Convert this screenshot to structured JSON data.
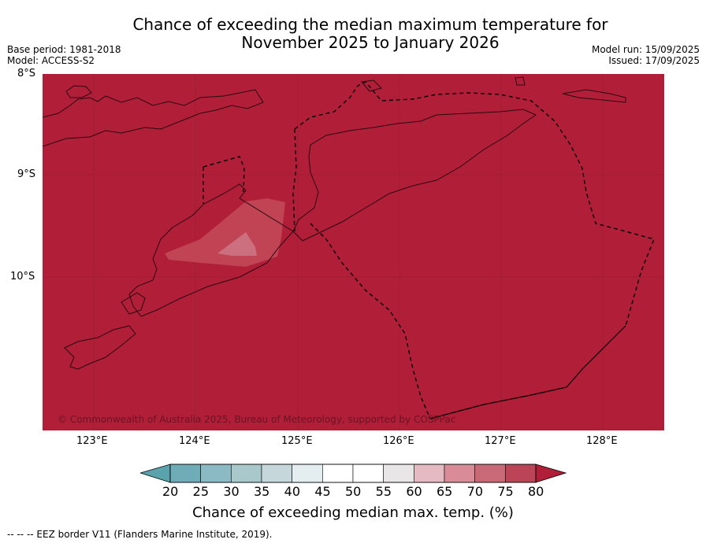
{
  "title": {
    "line1": "Chance of exceeding the median maximum temperature for",
    "line2": "November 2025 to January 2026"
  },
  "meta_left": {
    "base_period": "Base period: 1981-2018",
    "model": "Model: ACCESS-S2"
  },
  "meta_right": {
    "model_run": "Model run: 15/09/2025",
    "issued": "Issued: 17/09/2025"
  },
  "latitude_labels": [
    "8°S",
    "9°S",
    "10°S"
  ],
  "longitude_labels": [
    "123°E",
    "124°E",
    "125°E",
    "126°E",
    "127°E",
    "128°E"
  ],
  "map": {
    "background_color": "#b01e38",
    "copyright": "© Commonwealth of Australia 2025, Bureau of Meteorology, supported by COSPPac"
  },
  "colorbar": {
    "ticks": [
      "20",
      "25",
      "30",
      "35",
      "40",
      "45",
      "50",
      "55",
      "60",
      "65",
      "70",
      "75",
      "80"
    ],
    "low_arrow_color": "#5aa3ad",
    "high_arrow_color": "#b01e38",
    "colors": [
      "#6eacb8",
      "#8cbac4",
      "#a8c8cc",
      "#c6d7db",
      "#e4eef0",
      "#ffffff",
      "#ffffff",
      "#e8e6e7",
      "#e6bac2",
      "#d98b97",
      "#c96876",
      "#bb4556"
    ],
    "label": "Chance of exceeding median max. temp. (%)"
  },
  "footnote": "--  --  -- EEZ border V11 (Flanders Marine Institute, 2019)."
}
